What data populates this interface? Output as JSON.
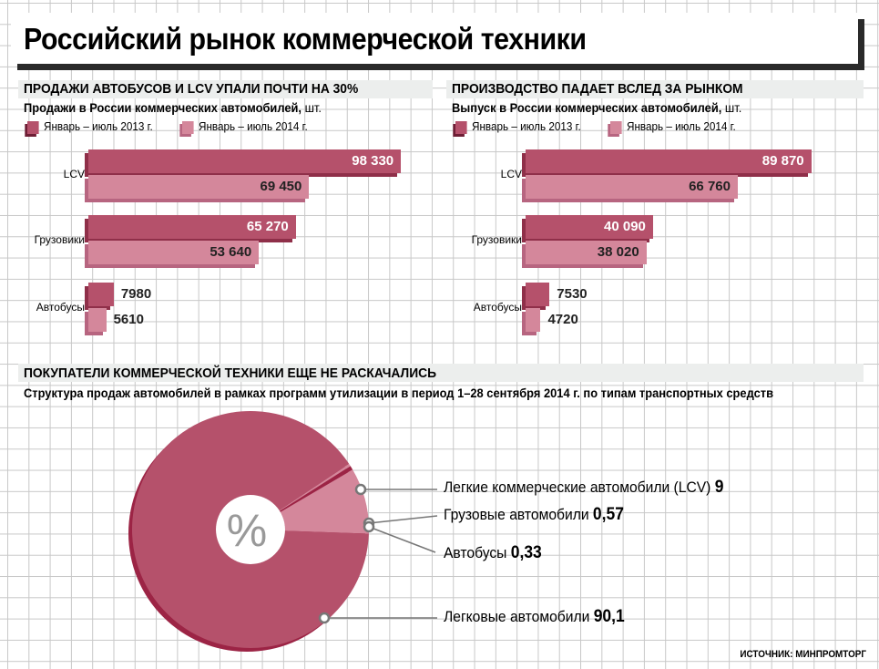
{
  "title": "Российский рынок коммерческой техники",
  "source": "ИСТОЧНИК: МИНПРОМТОРГ",
  "colors": {
    "y2013": "#b5516b",
    "y2014": "#d4879b",
    "edge": "#8f2f49"
  },
  "chart_data": [
    {
      "type": "bar",
      "orientation": "horizontal",
      "title": "ПРОДАЖИ АВТОБУСОВ И LCV УПАЛИ ПОЧТИ НА 30%",
      "subtitle": "Продажи в России коммерческих автомобилей,",
      "unit": "шт.",
      "categories": [
        "LCV",
        "Грузовики",
        "Автобусы"
      ],
      "series": [
        {
          "name": "Январь – июль 2013 г.",
          "values": [
            98330,
            65270,
            7980
          ],
          "labels": [
            "98 330",
            "65 270",
            "7980"
          ]
        },
        {
          "name": "Январь – июль 2014 г.",
          "values": [
            69450,
            53640,
            5610
          ],
          "labels": [
            "69 450",
            "53 640",
            "5610"
          ]
        }
      ],
      "legend": "top-left"
    },
    {
      "type": "bar",
      "orientation": "horizontal",
      "title": "ПРОИЗВОДСТВО ПАДАЕТ ВСЛЕД ЗА РЫНКОМ",
      "subtitle": "Выпуск в России коммерческих автомобилей,",
      "unit": "шт.",
      "categories": [
        "LCV",
        "Грузовики",
        "Автобусы"
      ],
      "series": [
        {
          "name": "Январь – июль 2013 г.",
          "values": [
            89870,
            40090,
            7530
          ],
          "labels": [
            "89 870",
            "40 090",
            "7530"
          ]
        },
        {
          "name": "Январь – июль 2014 г.",
          "values": [
            66760,
            38020,
            4720
          ],
          "labels": [
            "66 760",
            "38 020",
            "4720"
          ]
        }
      ],
      "legend": "top-left"
    },
    {
      "type": "pie",
      "donut": true,
      "title": "ПОКУПАТЕЛИ КОММЕРЧЕСКОЙ ТЕХНИКИ ЕЩЕ НЕ РАСКАЧАЛИСЬ",
      "subtitle": "Структура продаж автомобилей в рамках программ утилизации в период 1–28 сентября 2014 г. по типам транспортных средств",
      "center_label": "%",
      "slices": [
        {
          "name": "Легкие коммерческие автомобили (LCV)",
          "value": 9,
          "label": "9",
          "color": "#d4879b"
        },
        {
          "name": "Грузовые автомобили",
          "value": 0.57,
          "label": "0,57",
          "color": "#9c2445"
        },
        {
          "name": "Автобусы",
          "value": 0.33,
          "label": "0,33",
          "color": "#d4879b"
        },
        {
          "name": "Легковые автомобили",
          "value": 90.1,
          "label": "90,1",
          "color": "#b5516b"
        }
      ]
    }
  ]
}
